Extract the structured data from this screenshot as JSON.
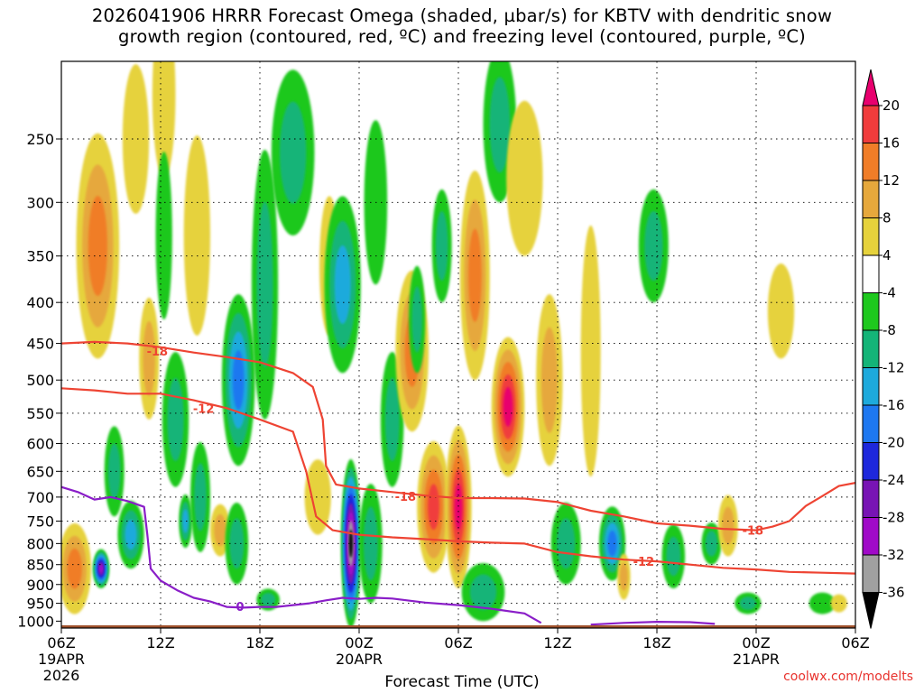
{
  "title_lines": [
    "2026041906 HRRR Forecast Omega (shaded, µbar/s) for KBTV with dendritic snow",
    "growth region (contoured, red, ºC) and freezing level (contoured, purple, ºC)"
  ],
  "credit": "coolwx.com/modelts",
  "chart_data": {
    "type": "heatmap",
    "title": "2026041906 HRRR Forecast Omega (shaded, µbar/s) for KBTV with dendritic snow growth region (contoured, red, ºC) and freezing level (contoured, purple, ºC)",
    "xlabel": "Forecast Time (UTC)",
    "ylabel": "",
    "x_range_hours": [
      0,
      48
    ],
    "y_range_hPa": [
      1000,
      200
    ],
    "y_scale": "log",
    "grid": true,
    "x_ticks": [
      {
        "hour": 0,
        "label": "06Z",
        "sub1": "19APR",
        "sub2": "2026"
      },
      {
        "hour": 6,
        "label": "12Z",
        "sub1": "",
        "sub2": ""
      },
      {
        "hour": 12,
        "label": "18Z",
        "sub1": "",
        "sub2": ""
      },
      {
        "hour": 18,
        "label": "00Z",
        "sub1": "20APR",
        "sub2": ""
      },
      {
        "hour": 24,
        "label": "06Z",
        "sub1": "",
        "sub2": ""
      },
      {
        "hour": 30,
        "label": "12Z",
        "sub1": "",
        "sub2": ""
      },
      {
        "hour": 36,
        "label": "18Z",
        "sub1": "",
        "sub2": ""
      },
      {
        "hour": 42,
        "label": "00Z",
        "sub1": "21APR",
        "sub2": ""
      },
      {
        "hour": 48,
        "label": "06Z",
        "sub1": "",
        "sub2": ""
      }
    ],
    "y_ticks": [
      250,
      300,
      350,
      400,
      450,
      500,
      550,
      600,
      650,
      700,
      750,
      800,
      850,
      900,
      950,
      1000
    ],
    "colorbar": {
      "labels": [
        "20",
        "16",
        "12",
        "8",
        "4",
        "-4",
        "-8",
        "-12",
        "-16",
        "-20",
        "-24",
        "-28",
        "-32",
        "-36"
      ],
      "colors": [
        "#e8006e",
        "#f03c3c",
        "#f07d28",
        "#e6a83c",
        "#e6d23c",
        "#ffffff",
        "#1ec81e",
        "#14b478",
        "#1eaadc",
        "#1e78f0",
        "#1e28dc",
        "#7814b4",
        "#a00ac8",
        "#a0a0a0",
        "#000000"
      ]
    },
    "omega_blobs": [
      {
        "t": 0.8,
        "p": 860,
        "ht": 1.0,
        "hp": 120,
        "v": 14
      },
      {
        "t": 2.2,
        "p": 340,
        "ht": 1.3,
        "hp": 130,
        "v": 12
      },
      {
        "t": 2.4,
        "p": 860,
        "ht": 0.5,
        "hp": 50,
        "v": -28
      },
      {
        "t": 3.2,
        "p": 650,
        "ht": 0.6,
        "hp": 90,
        "v": -8
      },
      {
        "t": 4.2,
        "p": 780,
        "ht": 0.8,
        "hp": 80,
        "v": -14
      },
      {
        "t": 4.5,
        "p": 250,
        "ht": 0.8,
        "hp": 60,
        "v": 6
      },
      {
        "t": 5.3,
        "p": 470,
        "ht": 0.6,
        "hp": 90,
        "v": 8
      },
      {
        "t": 6.2,
        "p": 220,
        "ht": 0.7,
        "hp": 60,
        "v": 6
      },
      {
        "t": 6.2,
        "p": 330,
        "ht": 0.5,
        "hp": 90,
        "v": -6
      },
      {
        "t": 6.9,
        "p": 560,
        "ht": 0.8,
        "hp": 120,
        "v": -8
      },
      {
        "t": 7.5,
        "p": 750,
        "ht": 0.4,
        "hp": 60,
        "v": -12
      },
      {
        "t": 8.4,
        "p": 700,
        "ht": 0.6,
        "hp": 120,
        "v": -8
      },
      {
        "t": 8.2,
        "p": 330,
        "ht": 0.8,
        "hp": 110,
        "v": 6
      },
      {
        "t": 9.6,
        "p": 770,
        "ht": 0.6,
        "hp": 60,
        "v": 8
      },
      {
        "t": 10.7,
        "p": 500,
        "ht": 1.0,
        "hp": 140,
        "v": -16
      },
      {
        "t": 10.6,
        "p": 800,
        "ht": 0.7,
        "hp": 100,
        "v": -10
      },
      {
        "t": 12.3,
        "p": 380,
        "ht": 0.8,
        "hp": 180,
        "v": -8
      },
      {
        "t": 12.5,
        "p": 940,
        "ht": 0.7,
        "hp": 30,
        "v": -8
      },
      {
        "t": 14.0,
        "p": 260,
        "ht": 1.3,
        "hp": 70,
        "v": -10
      },
      {
        "t": 15.5,
        "p": 700,
        "ht": 0.8,
        "hp": 80,
        "v": 6
      },
      {
        "t": 16.2,
        "p": 360,
        "ht": 0.6,
        "hp": 80,
        "v": 6
      },
      {
        "t": 17.0,
        "p": 380,
        "ht": 1.1,
        "hp": 110,
        "v": -12
      },
      {
        "t": 17.5,
        "p": 800,
        "ht": 0.6,
        "hp": 220,
        "v": -36
      },
      {
        "t": 18.7,
        "p": 800,
        "ht": 0.7,
        "hp": 150,
        "v": -10
      },
      {
        "t": 19.0,
        "p": 300,
        "ht": 0.7,
        "hp": 80,
        "v": -6
      },
      {
        "t": 20.0,
        "p": 560,
        "ht": 0.7,
        "hp": 120,
        "v": -8
      },
      {
        "t": 21.2,
        "p": 460,
        "ht": 1.0,
        "hp": 120,
        "v": 14
      },
      {
        "t": 21.5,
        "p": 420,
        "ht": 0.5,
        "hp": 70,
        "v": -10
      },
      {
        "t": 22.5,
        "p": 720,
        "ht": 1.0,
        "hp": 150,
        "v": 16
      },
      {
        "t": 23.0,
        "p": 340,
        "ht": 0.6,
        "hp": 60,
        "v": -8
      },
      {
        "t": 24.0,
        "p": 720,
        "ht": 0.8,
        "hp": 190,
        "v": 20
      },
      {
        "t": 25.0,
        "p": 370,
        "ht": 0.9,
        "hp": 130,
        "v": 12
      },
      {
        "t": 27.0,
        "p": 540,
        "ht": 1.0,
        "hp": 120,
        "v": 20
      },
      {
        "t": 25.5,
        "p": 920,
        "ht": 1.3,
        "hp": 80,
        "v": -8
      },
      {
        "t": 26.5,
        "p": 240,
        "ht": 1.0,
        "hp": 60,
        "v": -10
      },
      {
        "t": 28.0,
        "p": 280,
        "ht": 1.1,
        "hp": 70,
        "v": 6
      },
      {
        "t": 29.5,
        "p": 500,
        "ht": 0.8,
        "hp": 140,
        "v": 8
      },
      {
        "t": 30.5,
        "p": 800,
        "ht": 0.9,
        "hp": 100,
        "v": -8
      },
      {
        "t": 32.0,
        "p": 460,
        "ht": 0.6,
        "hp": 200,
        "v": 6
      },
      {
        "t": 33.3,
        "p": 800,
        "ht": 0.8,
        "hp": 90,
        "v": -18
      },
      {
        "t": 34.0,
        "p": 880,
        "ht": 0.4,
        "hp": 60,
        "v": 10
      },
      {
        "t": 35.8,
        "p": 340,
        "ht": 0.9,
        "hp": 60,
        "v": -8
      },
      {
        "t": 37.0,
        "p": 830,
        "ht": 0.7,
        "hp": 80,
        "v": -10
      },
      {
        "t": 39.3,
        "p": 800,
        "ht": 0.6,
        "hp": 50,
        "v": -10
      },
      {
        "t": 40.3,
        "p": 760,
        "ht": 0.6,
        "hp": 70,
        "v": 8
      },
      {
        "t": 41.5,
        "p": 950,
        "ht": 0.8,
        "hp": 30,
        "v": -8
      },
      {
        "t": 43.5,
        "p": 410,
        "ht": 0.8,
        "hp": 60,
        "v": 6
      },
      {
        "t": 46.0,
        "p": 950,
        "ht": 0.8,
        "hp": 30,
        "v": -6
      },
      {
        "t": 47.0,
        "p": 950,
        "ht": 0.5,
        "hp": 25,
        "v": 6
      }
    ],
    "contours": [
      {
        "name": "-18",
        "color": "#ee4433",
        "label": "-18",
        "label_at": [
          5.8,
          460
        ],
        "points": [
          [
            0,
            450
          ],
          [
            2,
            448
          ],
          [
            4,
            450
          ],
          [
            6,
            455
          ],
          [
            8,
            462
          ],
          [
            10,
            468
          ],
          [
            12,
            475
          ],
          [
            14,
            490
          ],
          [
            15.2,
            510
          ],
          [
            15.8,
            560
          ],
          [
            16.0,
            640
          ],
          [
            16.6,
            675
          ],
          [
            18,
            683
          ],
          [
            20,
            690
          ],
          [
            22,
            697
          ],
          [
            24,
            702
          ],
          [
            26,
            702
          ],
          [
            28,
            703
          ],
          [
            30,
            710
          ],
          [
            32,
            728
          ],
          [
            34,
            740
          ],
          [
            36,
            755
          ],
          [
            38,
            760
          ],
          [
            40,
            767
          ],
          [
            42,
            770
          ],
          [
            43,
            762
          ],
          [
            44,
            750
          ],
          [
            45,
            718
          ],
          [
            46,
            698
          ],
          [
            47,
            678
          ],
          [
            48,
            672
          ]
        ]
      },
      {
        "name": "-18b",
        "color": "#ee4433",
        "label": "-18",
        "label_at": [
          20.8,
          698
        ],
        "points": []
      },
      {
        "name": "-18c",
        "color": "#ee4433",
        "label": "-18",
        "label_at": [
          41.8,
          770
        ],
        "points": []
      },
      {
        "name": "-12",
        "color": "#ee4433",
        "label": "-12",
        "label_at": [
          8.6,
          542
        ],
        "points": [
          [
            0,
            512
          ],
          [
            2,
            515
          ],
          [
            4,
            520
          ],
          [
            6,
            520
          ],
          [
            8,
            530
          ],
          [
            10,
            542
          ],
          [
            12,
            560
          ],
          [
            14,
            580
          ],
          [
            14.8,
            650
          ],
          [
            15.4,
            740
          ],
          [
            16.4,
            770
          ],
          [
            18,
            780
          ],
          [
            20,
            786
          ],
          [
            22,
            790
          ],
          [
            24,
            795
          ],
          [
            26,
            798
          ],
          [
            28,
            800
          ],
          [
            30,
            820
          ],
          [
            32,
            830
          ],
          [
            34,
            838
          ],
          [
            36,
            842
          ],
          [
            38,
            850
          ],
          [
            40,
            858
          ],
          [
            42,
            862
          ],
          [
            44,
            868
          ],
          [
            46,
            870
          ],
          [
            48,
            872
          ]
        ]
      },
      {
        "name": "-12b",
        "color": "#ee4433",
        "label": "-12",
        "label_at": [
          35.2,
          842
        ],
        "points": []
      },
      {
        "name": "freezing-level",
        "color": "#8a1ec8",
        "label": "0",
        "label_at": [
          10.8,
          958
        ],
        "points": [
          [
            0,
            680
          ],
          [
            1,
            690
          ],
          [
            2,
            705
          ],
          [
            3,
            700
          ],
          [
            4,
            708
          ],
          [
            5,
            720
          ],
          [
            5.2,
            780
          ],
          [
            5.4,
            860
          ],
          [
            6.0,
            890
          ],
          [
            7,
            915
          ],
          [
            8,
            935
          ],
          [
            9,
            945
          ],
          [
            10,
            960
          ],
          [
            11,
            962
          ],
          [
            12,
            960
          ],
          [
            13,
            960
          ],
          [
            14,
            955
          ],
          [
            15,
            950
          ],
          [
            16,
            942
          ],
          [
            17,
            935
          ],
          [
            18,
            938
          ],
          [
            19,
            935
          ],
          [
            20,
            937
          ],
          [
            22,
            948
          ],
          [
            24,
            955
          ],
          [
            26,
            965
          ],
          [
            28,
            978
          ],
          [
            29,
            1005
          ]
        ]
      },
      {
        "name": "freezing-level-2",
        "color": "#8a1ec8",
        "label": "",
        "label_at": [
          0,
          0
        ],
        "points": [
          [
            32,
            1010
          ],
          [
            34,
            1005
          ],
          [
            36,
            1002
          ],
          [
            38,
            1003
          ],
          [
            39.5,
            1008
          ]
        ]
      }
    ]
  }
}
